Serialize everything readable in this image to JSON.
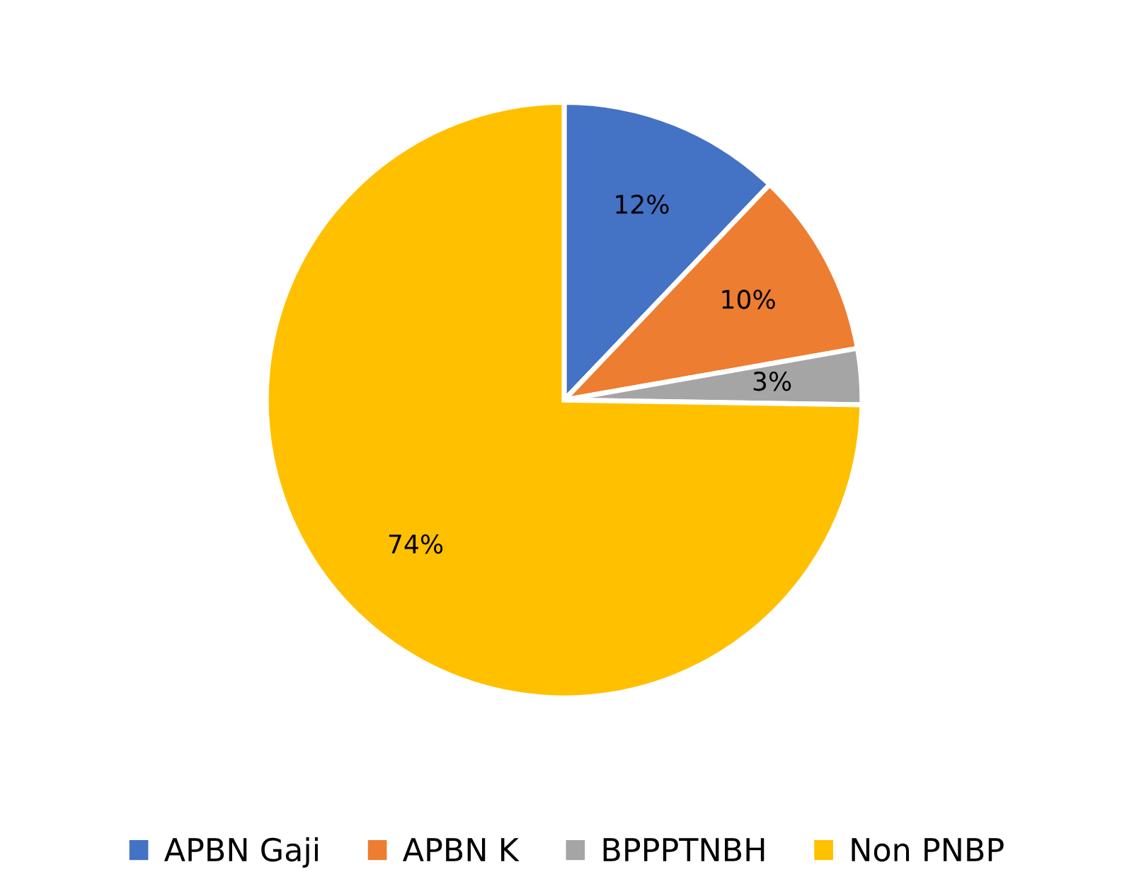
{
  "chart_data": {
    "type": "pie",
    "categories": [
      "APBN Gaji",
      "APBN K",
      "BPPPTNBH",
      "Non PNBP"
    ],
    "values": [
      12,
      10,
      3,
      74
    ],
    "colors": [
      "#4472c4",
      "#ed7d31",
      "#a5a5a5",
      "#ffc000"
    ],
    "value_labels": [
      "12%",
      "10%",
      "3%",
      "74%"
    ],
    "legend": "bottom"
  }
}
